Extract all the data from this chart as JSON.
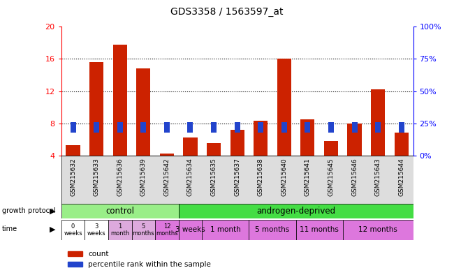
{
  "title": "GDS3358 / 1563597_at",
  "samples": [
    "GSM215632",
    "GSM215633",
    "GSM215636",
    "GSM215639",
    "GSM215642",
    "GSM215634",
    "GSM215635",
    "GSM215637",
    "GSM215638",
    "GSM215640",
    "GSM215641",
    "GSM215645",
    "GSM215646",
    "GSM215643",
    "GSM215644"
  ],
  "count_values": [
    5.3,
    15.6,
    17.8,
    14.8,
    4.2,
    6.2,
    5.5,
    7.2,
    8.3,
    16.0,
    8.5,
    5.8,
    8.0,
    12.2,
    6.8
  ],
  "percentile_values": [
    22,
    22,
    22,
    22,
    22,
    22,
    22,
    22,
    22,
    22,
    22,
    22,
    22,
    22,
    22
  ],
  "bar_color": "#cc2200",
  "perc_color": "#2244cc",
  "ylim": [
    4,
    20
  ],
  "yticks": [
    4,
    8,
    12,
    16,
    20
  ],
  "right_ylim": [
    0,
    100
  ],
  "right_yticks": [
    0,
    25,
    50,
    75,
    100
  ],
  "right_yticklabels": [
    "0%",
    "25%",
    "50%",
    "75%",
    "100%"
  ],
  "bar_width": 0.6,
  "control_label": "control",
  "androgen_label": "androgen-deprived",
  "growth_protocol_label": "growth protocol",
  "time_label": "time",
  "control_color": "#99ee88",
  "androgen_color": "#44dd44",
  "time_control_colors": [
    "#ffffff",
    "#ffffff",
    "#ddaadd",
    "#ddaadd",
    "#dd77dd"
  ],
  "time_androgen_color": "#dd77dd",
  "time_control_labels": [
    "0\nweeks",
    "3\nweeks",
    "1\nmonth",
    "5\nmonths",
    "12\nmonths"
  ],
  "time_androgen_groups": [
    {
      "label": "3 weeks",
      "count": 1
    },
    {
      "label": "1 month",
      "count": 2
    },
    {
      "label": "5 months",
      "count": 2
    },
    {
      "label": "11 months",
      "count": 2
    },
    {
      "label": "12 months",
      "count": 3
    }
  ],
  "n_control": 5,
  "n_androgen": 10,
  "legend_count_label": "count",
  "legend_perc_label": "percentile rank within the sample"
}
